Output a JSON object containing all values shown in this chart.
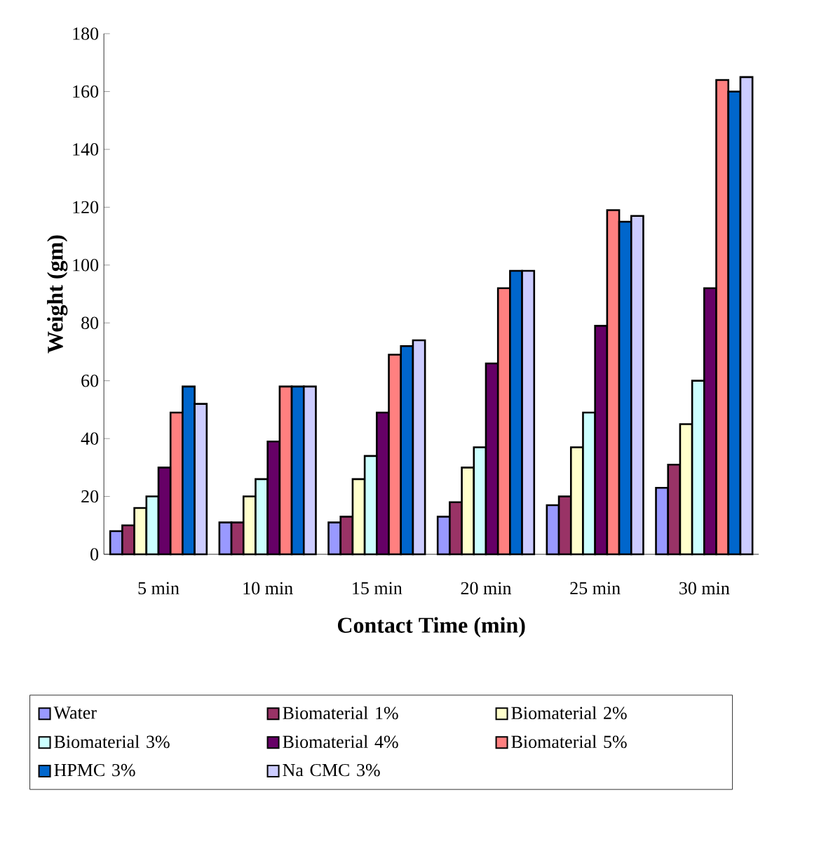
{
  "chart_data": {
    "type": "bar",
    "xlabel": "Contact Time (min)",
    "ylabel": "Weight (gm)",
    "categories": [
      "5 min",
      "10 min",
      "15 min",
      "20 min",
      "25 min",
      "30 min"
    ],
    "ylim": [
      0,
      180
    ],
    "yticks": [
      0,
      20,
      40,
      60,
      80,
      100,
      120,
      140,
      160,
      180
    ],
    "grid": false,
    "legend": "bottom",
    "series": [
      {
        "name": "Water",
        "color": "#9999ff",
        "values": [
          8,
          11,
          11,
          13,
          17,
          23
        ]
      },
      {
        "name": "Biomaterial 1%",
        "color": "#993366",
        "values": [
          10,
          11,
          13,
          18,
          20,
          31
        ]
      },
      {
        "name": "Biomaterial 2%",
        "color": "#ffffcc",
        "values": [
          16,
          20,
          26,
          30,
          37,
          45
        ]
      },
      {
        "name": "Biomaterial 3%",
        "color": "#ccffff",
        "values": [
          20,
          26,
          34,
          37,
          49,
          60
        ]
      },
      {
        "name": "Biomaterial 4%",
        "color": "#660066",
        "values": [
          30,
          39,
          49,
          66,
          79,
          92
        ]
      },
      {
        "name": "Biomaterial 5%",
        "color": "#ff8080",
        "values": [
          49,
          58,
          69,
          92,
          119,
          164
        ]
      },
      {
        "name": "HPMC 3%",
        "color": "#0066cc",
        "values": [
          58,
          58,
          72,
          98,
          115,
          160
        ]
      },
      {
        "name": "Na CMC 3%",
        "color": "#ccccff",
        "values": [
          52,
          58,
          74,
          98,
          117,
          165
        ]
      }
    ]
  }
}
